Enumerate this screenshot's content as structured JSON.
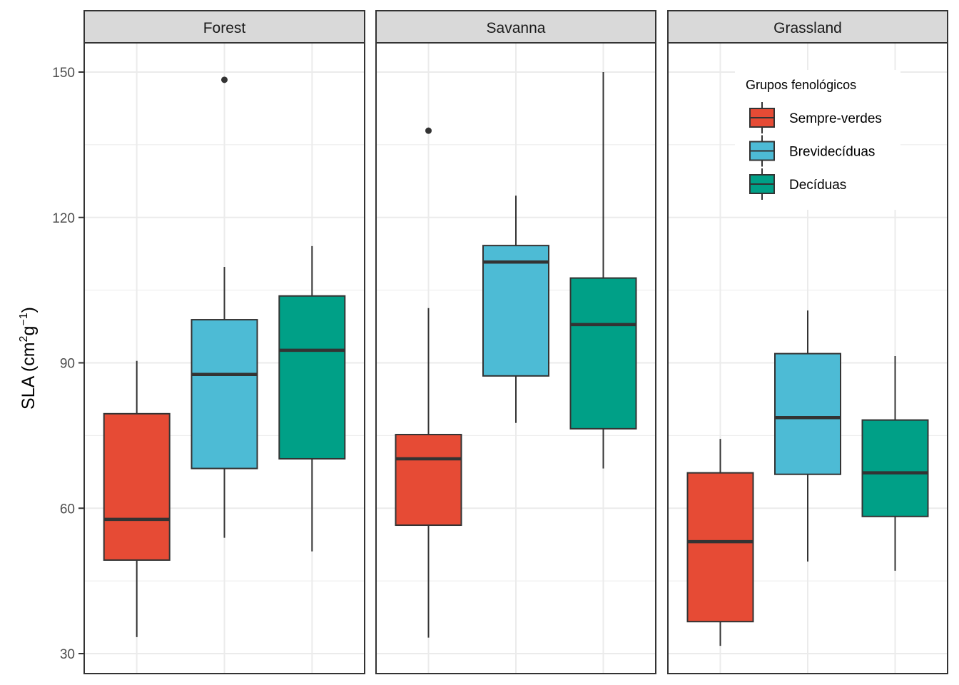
{
  "chart_data": {
    "type": "boxplot",
    "title": "",
    "xlabel": "",
    "ylabel": "SLA (cm2g-1)",
    "ylabel_parts": {
      "base": "SLA (cm",
      "sup1": "2",
      "mid": "g",
      "sup2": "−1",
      "end": ")"
    },
    "ylim": [
      26,
      157
    ],
    "yticks": [
      30,
      60,
      90,
      120,
      150
    ],
    "grid": true,
    "facets": [
      "Forest",
      "Savanna",
      "Grassland"
    ],
    "legend": {
      "title": "Grupos fenológicos",
      "position": "top-right (inside Grassland panel)",
      "entries": [
        "Sempre-verdes",
        "Brevidecíduas",
        "Decíduas"
      ]
    },
    "colors": {
      "Sempre-verdes": "#E64B35",
      "Brevidecíduas": "#4DBBD5",
      "Decíduas": "#00A087"
    },
    "series": [
      {
        "facet": "Forest",
        "boxes": [
          {
            "group": "Sempre-verdes",
            "whisker_low": 33.4,
            "q1": 49.3,
            "median": 57.7,
            "q3": 79.5,
            "whisker_high": 90.4,
            "outliers": []
          },
          {
            "group": "Brevidecíduas",
            "whisker_low": 53.9,
            "q1": 68.2,
            "median": 87.6,
            "q3": 98.9,
            "whisker_high": 109.8,
            "outliers": [
              148.4
            ]
          },
          {
            "group": "Decíduas",
            "whisker_low": 51.1,
            "q1": 70.2,
            "median": 92.6,
            "q3": 103.8,
            "whisker_high": 114.1,
            "outliers": []
          }
        ]
      },
      {
        "facet": "Savanna",
        "boxes": [
          {
            "group": "Sempre-verdes",
            "whisker_low": 33.3,
            "q1": 56.5,
            "median": 70.2,
            "q3": 75.2,
            "whisker_high": 101.3,
            "outliers": [
              137.9
            ]
          },
          {
            "group": "Brevidecíduas",
            "whisker_low": 77.6,
            "q1": 87.3,
            "median": 110.8,
            "q3": 114.2,
            "whisker_high": 124.5,
            "outliers": []
          },
          {
            "group": "Decíduas",
            "whisker_low": 68.2,
            "q1": 76.4,
            "median": 97.9,
            "q3": 107.5,
            "whisker_high": 150.0,
            "outliers": []
          }
        ]
      },
      {
        "facet": "Grassland",
        "boxes": [
          {
            "group": "Sempre-verdes",
            "whisker_low": 31.6,
            "q1": 36.6,
            "median": 53.1,
            "q3": 67.3,
            "whisker_high": 74.3,
            "outliers": []
          },
          {
            "group": "Brevidecíduas",
            "whisker_low": 49.0,
            "q1": 67.0,
            "median": 78.7,
            "q3": 91.9,
            "whisker_high": 100.8,
            "outliers": []
          },
          {
            "group": "Decíduas",
            "whisker_low": 47.1,
            "q1": 58.3,
            "median": 67.3,
            "q3": 78.2,
            "whisker_high": 91.4,
            "outliers": []
          }
        ]
      }
    ]
  }
}
